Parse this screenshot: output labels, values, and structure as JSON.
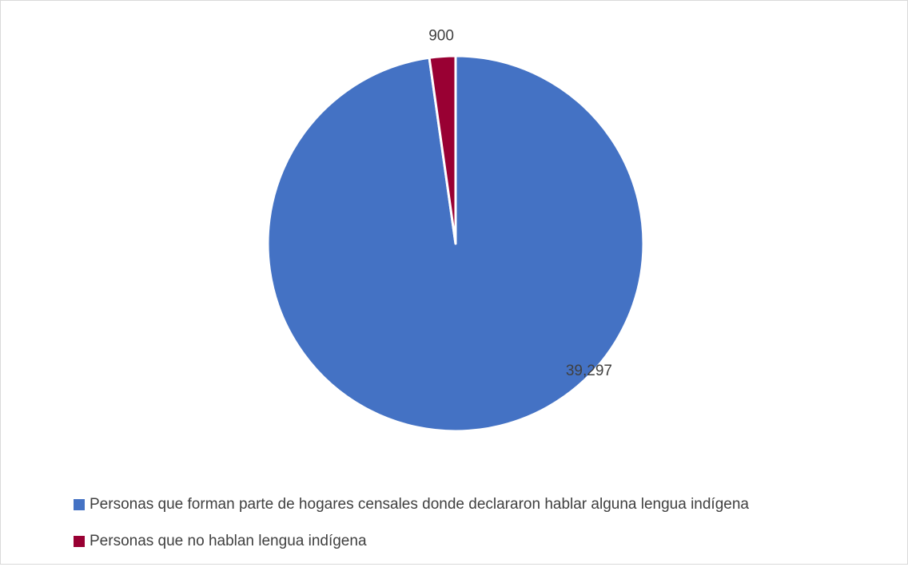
{
  "chart_data": {
    "type": "pie",
    "title": "",
    "categories": [
      "Personas que forman parte de hogares censales donde declararon hablar alguna lengua indígena",
      "Personas que no hablan lengua indígena"
    ],
    "values": [
      39297,
      900
    ],
    "value_labels": [
      "39,297",
      "900"
    ],
    "colors": [
      "#4472C4",
      "#990033"
    ],
    "start_angle_deg": 0,
    "direction": "clockwise",
    "legend_position": "bottom"
  },
  "legend": {
    "items": [
      {
        "label": "Personas que forman parte de hogares censales donde declararon hablar alguna lengua indígena",
        "color": "#4472C4"
      },
      {
        "label": "Personas que no hablan lengua indígena",
        "color": "#990033"
      }
    ]
  }
}
